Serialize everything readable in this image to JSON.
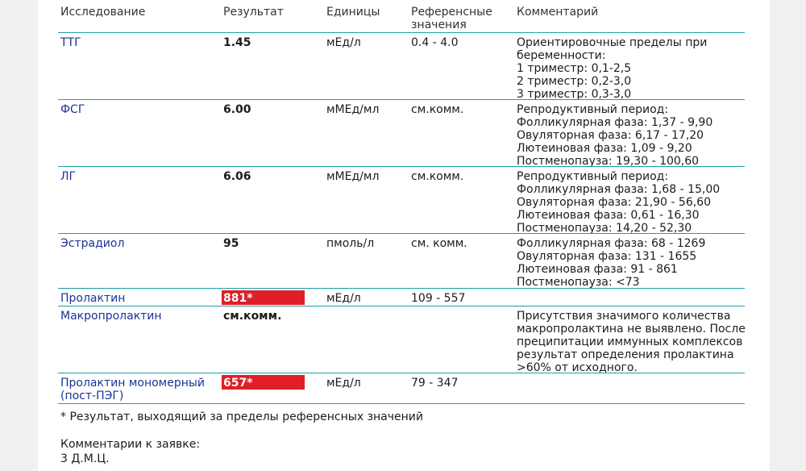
{
  "header": {
    "study": "Исследование",
    "result": "Результат",
    "units": "Единицы",
    "reference": "Референсные\nзначения",
    "comment": "Комментарий"
  },
  "rows": [
    {
      "name": "ТТГ",
      "result": "1.45",
      "flagged": false,
      "unit": "мЕд/л",
      "ref": "0.4 - 4.0",
      "comment": [
        "Ориентировочные пределы при",
        "беременности:",
        "1 триместр: 0,1-2,5",
        "2 триместр: 0,2-3,0",
        "3 триместр: 0,3-3,0"
      ]
    },
    {
      "name": "ФСГ",
      "result": "6.00",
      "flagged": false,
      "unit": "мМЕд/мл",
      "ref": "см.комм.",
      "comment": [
        "Репродуктивный период:",
        "Фолликулярная фаза: 1,37 - 9,90",
        "Овуляторная фаза: 6,17 - 17,20",
        "Лютеиновая фаза: 1,09 - 9,20",
        "Постменопауза: 19,30 - 100,60"
      ]
    },
    {
      "name": "ЛГ",
      "result": "6.06",
      "flagged": false,
      "unit": "мМЕд/мл",
      "ref": "см.комм.",
      "comment": [
        "Репродуктивный период:",
        "Фолликулярная фаза: 1,68 - 15,00",
        "Овуляторная фаза: 21,90 - 56,60",
        "Лютеиновая фаза: 0,61 - 16,30",
        "Постменопауза: 14,20 - 52,30"
      ]
    },
    {
      "name": "Эстрадиол",
      "result": "95",
      "flagged": false,
      "unit": "пмоль/л",
      "ref": "см. комм.",
      "comment": [
        "Фолликулярная фаза: 68 - 1269",
        "Овуляторная фаза: 131 - 1655",
        "Лютеиновая фаза: 91 - 861",
        "Постменопауза: <73"
      ]
    },
    {
      "name": "Пролактин",
      "result": "881*",
      "flagged": true,
      "unit": "мЕд/л",
      "ref": "109 - 557",
      "comment": []
    },
    {
      "name": "Макропролактин",
      "result": "см.комм.",
      "flagged": false,
      "unit": "",
      "ref": "",
      "comment": [
        "Присутствия значимого количества",
        "макропролактина не выявлено. После",
        "преципитации иммунных комплексов",
        "результат определения пролактина",
        ">60% от исходного."
      ]
    },
    {
      "name": "Пролактин мономерный\n(пост-ПЭГ)",
      "result": "657*",
      "flagged": true,
      "unit": "мЕд/л",
      "ref": "79 - 347",
      "comment": []
    }
  ],
  "footnote": "* Результат, выходящий за пределы референсных значений",
  "request_comment_label": "Комментарии к заявке:",
  "request_comment_value": "3 Д.М.Ц.",
  "colors": {
    "flag_bg": "#e01e27",
    "separator": "#1aa0a8",
    "test_name": "#1a3399"
  }
}
